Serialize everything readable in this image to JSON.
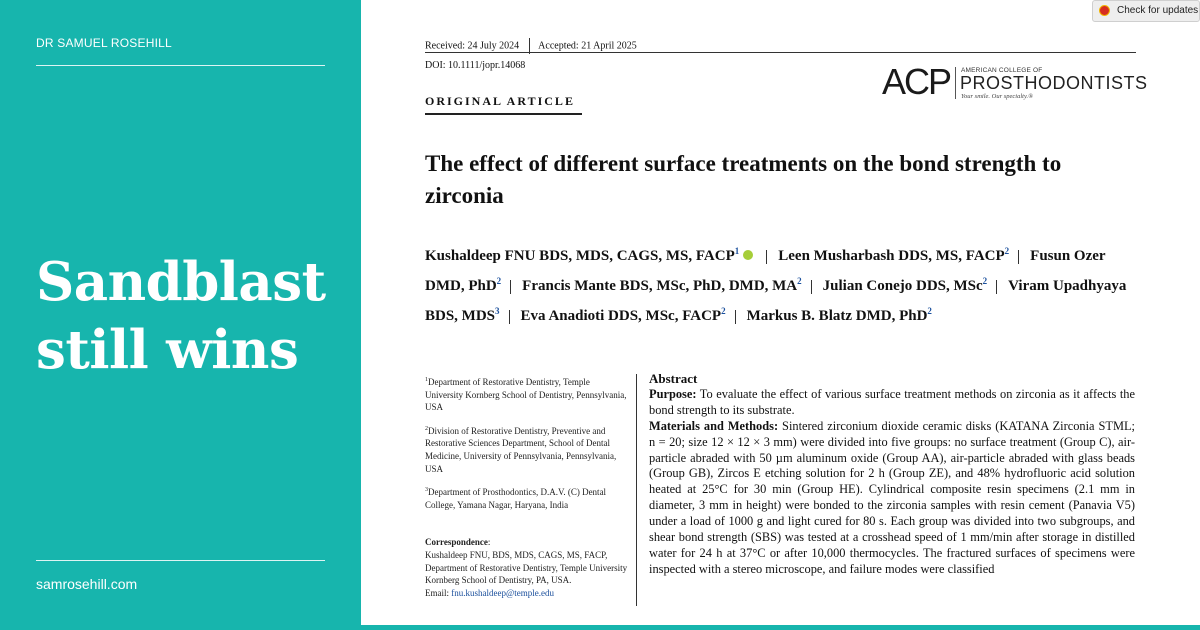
{
  "left_panel": {
    "brand": "DR SAMUEL ROSEHILL",
    "headline_line1": "Sandblast",
    "headline_line2": "still wins",
    "site": "samrosehill.com",
    "color": "#17b5ad"
  },
  "paper": {
    "received": "Received: 24 July 2024",
    "accepted": "Accepted: 21 April 2025",
    "doi": "DOI: 10.1111/jopr.14068",
    "article_type": "ORIGINAL ARTICLE",
    "logo": {
      "mark": "ACP",
      "super": "AMERICAN COLLEGE OF",
      "main": "PROSTHODONTISTS",
      "tagline": "Your smile. Our specialty.®"
    },
    "title_line1": "The effect of different surface treatments on the bond strength to",
    "title_line2": "zirconia",
    "authors": [
      {
        "name": "Kushaldeep FNU BDS, MDS, CAGS, MS, FACP",
        "sup": "1"
      },
      {
        "name": "Leen Musharbash DDS, MS, FACP",
        "sup": "2"
      },
      {
        "name": "Fusun Ozer DMD, PhD",
        "sup": "2"
      },
      {
        "name": "Francis Mante BDS, MSc, PhD, DMD, MA",
        "sup": "2"
      },
      {
        "name": "Julian Conejo DDS, MSc",
        "sup": "2"
      },
      {
        "name": "Viram Upadhyaya BDS, MDS",
        "sup": "3"
      },
      {
        "name": "Eva Anadioti DDS, MSc, FACP",
        "sup": "2"
      },
      {
        "name": "Markus B. Blatz DMD, PhD",
        "sup": "2"
      }
    ],
    "affiliations": [
      {
        "sup": "1",
        "text": "Department of Restorative Dentistry, Temple University Kornberg School of Dentistry, Pennsylvania, USA"
      },
      {
        "sup": "2",
        "text": "Division of Restorative Dentistry, Preventive and Restorative Sciences Department, School of Dental Medicine, University of Pennsylvania, Pennsylvania, USA"
      },
      {
        "sup": "3",
        "text": "Department of Prosthodontics, D.A.V. (C) Dental College, Yamana Nagar, Haryana, India"
      }
    ],
    "correspondence": {
      "label": "Correspondence",
      "text": "Kushaldeep FNU, BDS, MDS, CAGS, MS, FACP, Department of Restorative Dentistry, Temple University Kornberg School of Dentistry, PA, USA.",
      "email_label": "Email:",
      "email": "fnu.kushaldeep@temple.edu"
    },
    "abstract": {
      "heading": "Abstract",
      "purpose_label": "Purpose:",
      "purpose": "To evaluate the effect of various surface treatment methods on zirconia as it affects the bond strength to its substrate.",
      "methods_label": "Materials and Methods:",
      "methods": "Sintered zirconium dioxide ceramic disks (KATANA Zirconia STML; n = 20; size 12 × 12 × 3 mm) were divided into five groups: no surface treatment (Group C), air-particle abraded with 50 µm aluminum oxide (Group AA), air-particle abraded with glass beads (Group GB), Zircos E etching solution for 2 h (Group ZE), and 48% hydrofluoric acid solution heated at 25°C for 30 min (Group HE). Cylindrical composite resin specimens (2.1 mm in diameter, 3 mm in height) were bonded to the zirconia samples with resin cement (Panavia V5) under a load of 1000 g and light cured for 80 s. Each group was divided into two subgroups, and shear bond strength (SBS) was tested at a crosshead speed of 1 mm/min after storage in distilled water for 24 h at 37°C or after 10,000 thermocycles. The fractured surfaces of specimens were inspected with a stereo microscope, and failure modes were classified"
    }
  },
  "check_updates": {
    "label": "Check for updates",
    "icon": "crossmark-icon"
  }
}
